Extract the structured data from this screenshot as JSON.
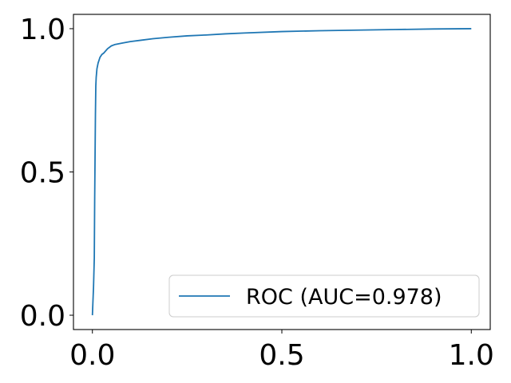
{
  "chart_data": {
    "type": "line",
    "title": "",
    "xlabel": "",
    "ylabel": "",
    "xlim": [
      -0.05,
      1.05
    ],
    "ylim": [
      -0.05,
      1.05
    ],
    "x_ticks": [
      0.0,
      0.5,
      1.0
    ],
    "y_ticks": [
      0.0,
      0.5,
      1.0
    ],
    "x_tick_labels": [
      "0.0",
      "0.5",
      "1.0"
    ],
    "y_tick_labels": [
      "0.0",
      "0.5",
      "1.0"
    ],
    "grid": false,
    "legend_position": "lower-right",
    "series": [
      {
        "name": "ROC (AUC=0.978)",
        "color": "#1f77b4",
        "x": [
          0.0,
          0.003,
          0.005,
          0.006,
          0.007,
          0.008,
          0.009,
          0.01,
          0.012,
          0.015,
          0.02,
          0.025,
          0.03,
          0.04,
          0.05,
          0.06,
          0.08,
          0.1,
          0.13,
          0.16,
          0.2,
          0.25,
          0.3,
          0.35,
          0.4,
          0.5,
          0.6,
          0.7,
          0.8,
          0.9,
          1.0
        ],
        "y": [
          0.0,
          0.1,
          0.2,
          0.4,
          0.55,
          0.7,
          0.8,
          0.83,
          0.86,
          0.88,
          0.9,
          0.91,
          0.915,
          0.93,
          0.94,
          0.945,
          0.95,
          0.955,
          0.96,
          0.965,
          0.97,
          0.975,
          0.978,
          0.982,
          0.985,
          0.99,
          0.993,
          0.995,
          0.997,
          0.999,
          1.0
        ]
      }
    ]
  }
}
